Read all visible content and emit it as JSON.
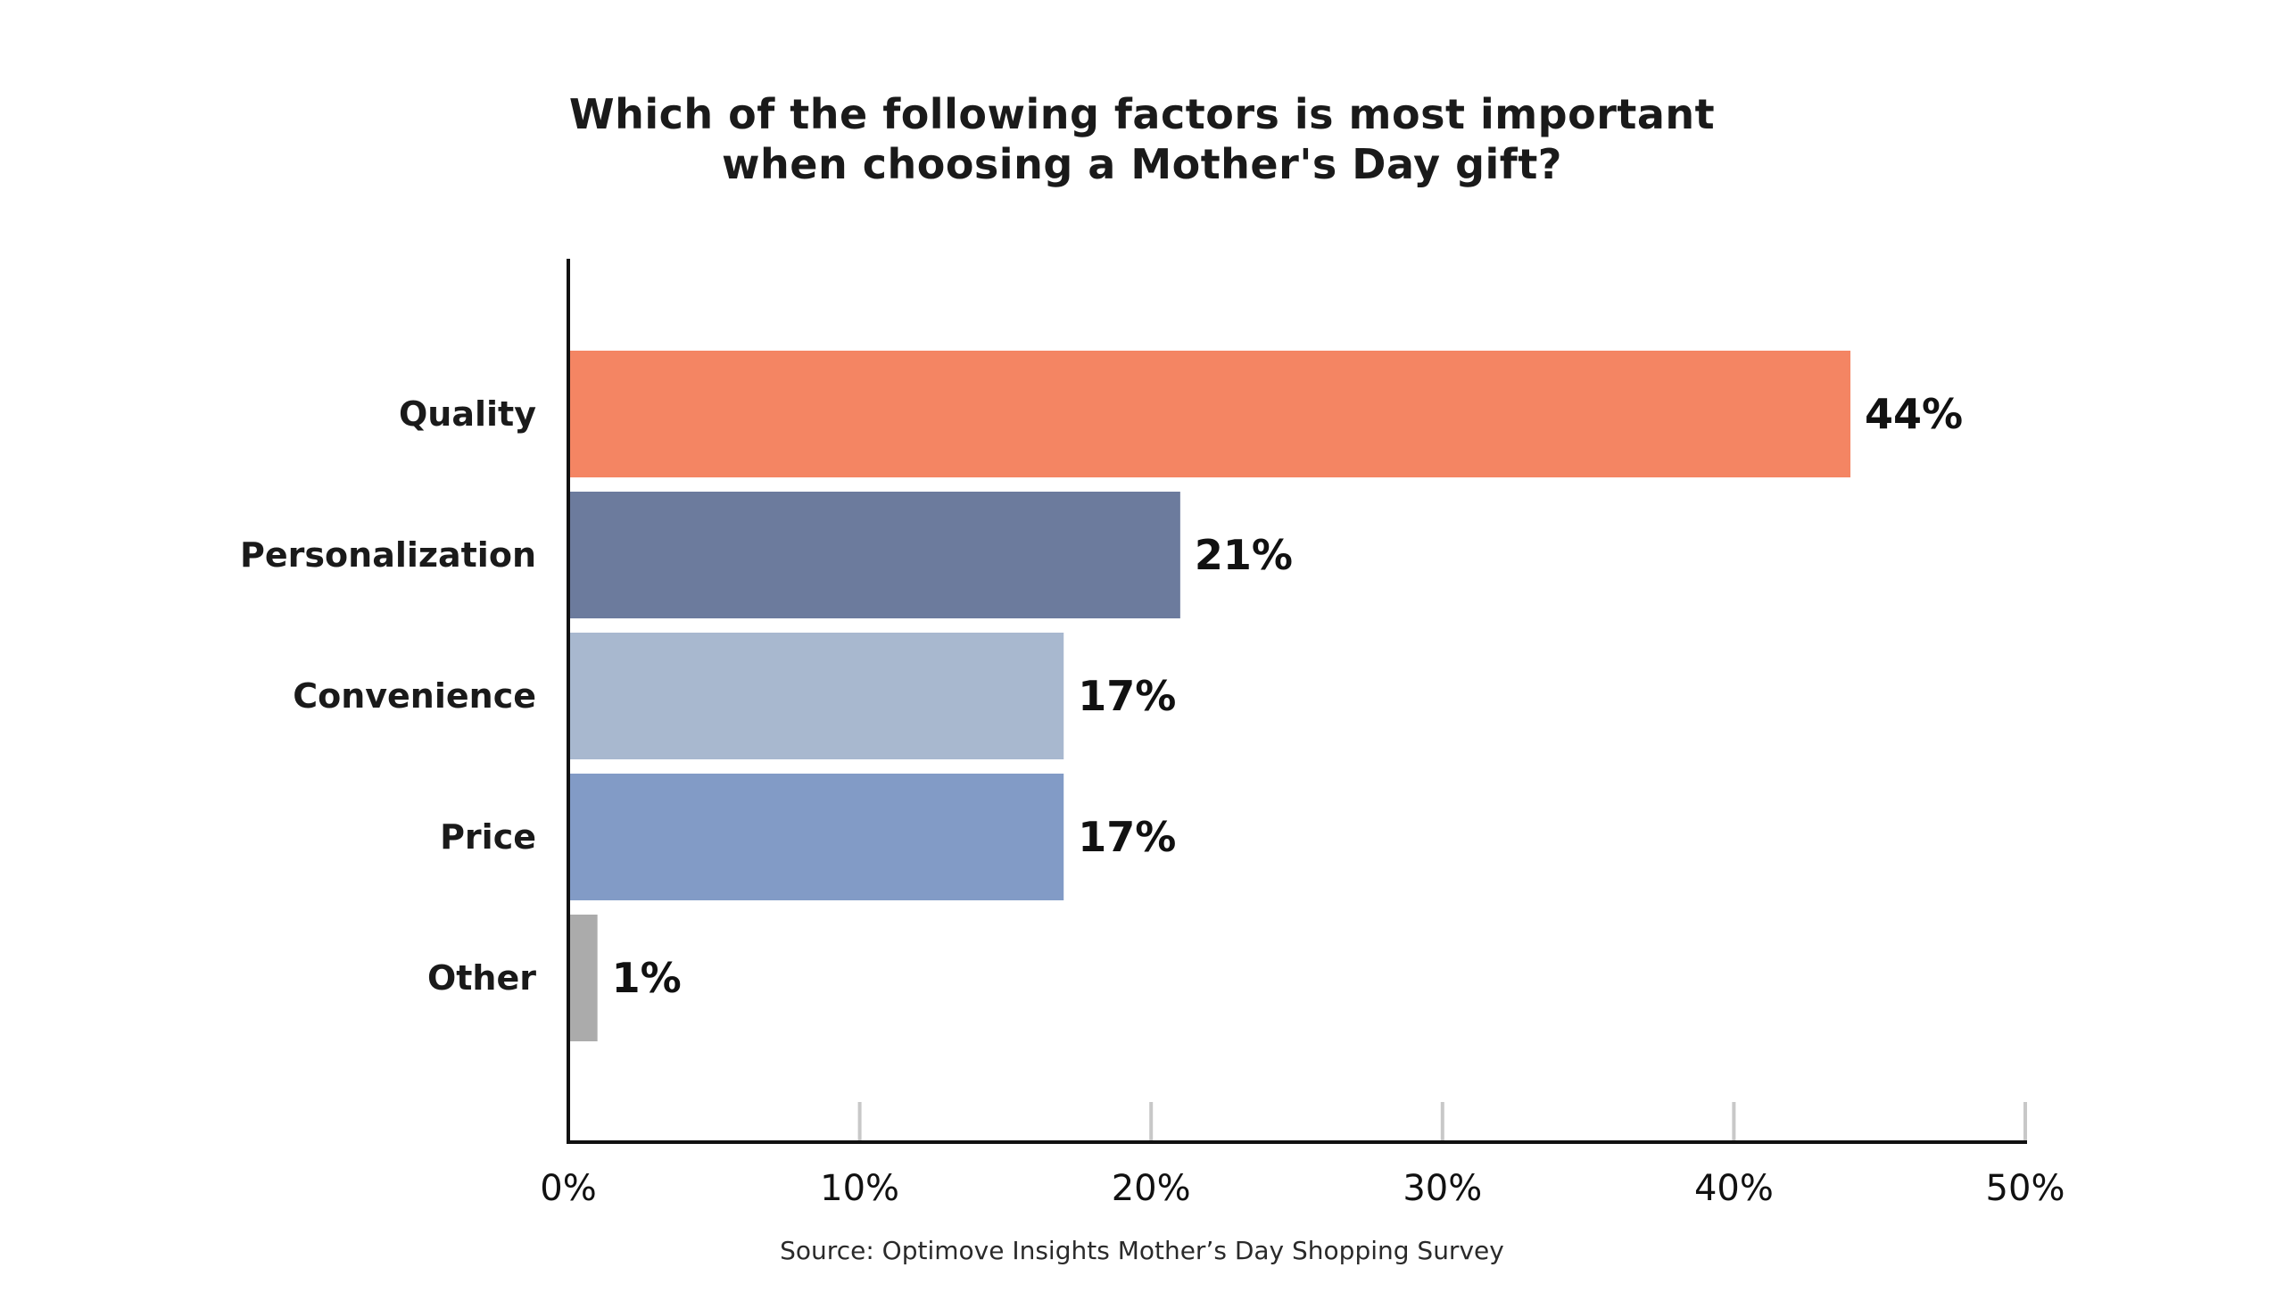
{
  "chart_data": {
    "type": "bar",
    "orientation": "horizontal",
    "title_lines": [
      "Which of the following factors is most important",
      "when choosing a Mother's Day gift?"
    ],
    "source": "Source: Optimove Insights Mother’s Day Shopping Survey",
    "categories": [
      "Quality",
      "Personalization",
      "Convenience",
      "Price",
      "Other"
    ],
    "values": [
      44,
      21,
      17,
      17,
      1
    ],
    "value_labels": [
      "44%",
      "21%",
      "17%",
      "17%",
      "1%"
    ],
    "bar_colors": [
      "#F48563",
      "#6C7B9D",
      "#A8B8CF",
      "#829BC6",
      "#ABABAB"
    ],
    "xlim": [
      0,
      50
    ],
    "x_ticks": [
      0,
      10,
      20,
      30,
      40,
      50
    ],
    "x_tick_labels": [
      "0%",
      "10%",
      "20%",
      "30%",
      "40%",
      "50%"
    ],
    "xlabel": "",
    "ylabel": "",
    "grid": false,
    "legend": "none"
  }
}
